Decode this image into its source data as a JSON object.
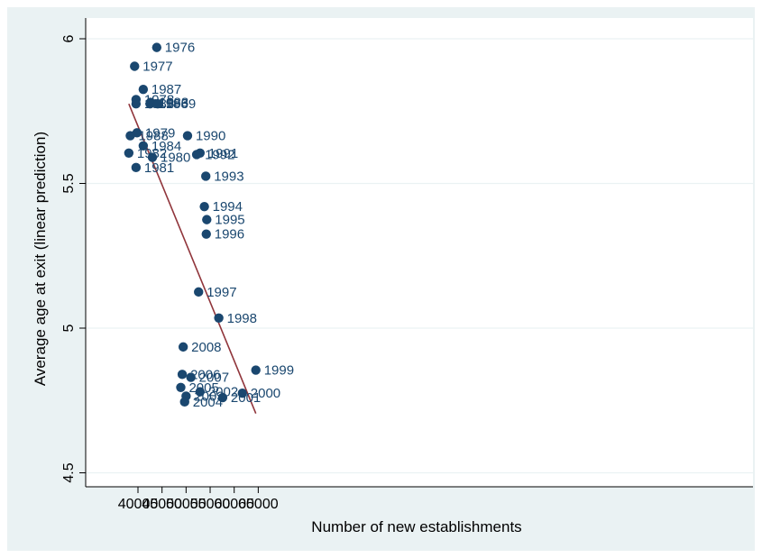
{
  "chart_data": {
    "type": "scatter",
    "xlabel": "Number of new establishments",
    "ylabel": "Average age at exit (linear prediction)",
    "xlim": [
      37900,
      65000
    ],
    "ylim": [
      4.45,
      6.07
    ],
    "x_ticks": [
      40000,
      45000,
      50000,
      55000,
      60000,
      65000
    ],
    "x_tick_labels": [
      "40000",
      "45000",
      "50000",
      "55000",
      "60000",
      "65000"
    ],
    "y_ticks": [
      4.5,
      5,
      5.5,
      6
    ],
    "y_tick_labels": [
      "4.5",
      "5",
      "5.5",
      "6"
    ],
    "grid": true,
    "colors": {
      "marker": "#1a476f",
      "label": "#1a476f",
      "fit_line": "#90353b",
      "plot_bg": "#ffffff",
      "outer_bg": "#eaf2f3",
      "grid": "#eaf2f3"
    },
    "points": [
      {
        "label": "1976",
        "x": 43900,
        "y": 5.97
      },
      {
        "label": "1977",
        "x": 39300,
        "y": 5.905
      },
      {
        "label": "1978",
        "x": 39600,
        "y": 5.79
      },
      {
        "label": "1979",
        "x": 39800,
        "y": 5.675
      },
      {
        "label": "1980",
        "x": 43000,
        "y": 5.59
      },
      {
        "label": "1981",
        "x": 39600,
        "y": 5.555
      },
      {
        "label": "1982",
        "x": 38100,
        "y": 5.605
      },
      {
        "label": "1983",
        "x": 42600,
        "y": 5.78
      },
      {
        "label": "1984",
        "x": 41100,
        "y": 5.63
      },
      {
        "label": "1985",
        "x": 39600,
        "y": 5.775
      },
      {
        "label": "1986",
        "x": 42500,
        "y": 5.775
      },
      {
        "label": "1987",
        "x": 41100,
        "y": 5.825
      },
      {
        "label": "1988",
        "x": 38400,
        "y": 5.665
      },
      {
        "label": "1989",
        "x": 44100,
        "y": 5.775
      },
      {
        "label": "1990",
        "x": 50300,
        "y": 5.665
      },
      {
        "label": "1991",
        "x": 52900,
        "y": 5.605
      },
      {
        "label": "1992",
        "x": 52200,
        "y": 5.6
      },
      {
        "label": "1993",
        "x": 54100,
        "y": 5.525
      },
      {
        "label": "1994",
        "x": 53800,
        "y": 5.42
      },
      {
        "label": "1995",
        "x": 54300,
        "y": 5.375
      },
      {
        "label": "1996",
        "x": 54200,
        "y": 5.325
      },
      {
        "label": "1997",
        "x": 52600,
        "y": 5.125
      },
      {
        "label": "1998",
        "x": 56800,
        "y": 5.035
      },
      {
        "label": "1999",
        "x": 64500,
        "y": 4.855
      },
      {
        "label": "2000",
        "x": 61700,
        "y": 4.775
      },
      {
        "label": "2001",
        "x": 57600,
        "y": 4.76
      },
      {
        "label": "2002",
        "x": 52900,
        "y": 4.78
      },
      {
        "label": "2003",
        "x": 50000,
        "y": 4.765
      },
      {
        "label": "2004",
        "x": 49700,
        "y": 4.745
      },
      {
        "label": "2005",
        "x": 48900,
        "y": 4.795
      },
      {
        "label": "2006",
        "x": 49200,
        "y": 4.84
      },
      {
        "label": "2007",
        "x": 51000,
        "y": 4.83
      },
      {
        "label": "2008",
        "x": 49400,
        "y": 4.935
      }
    ],
    "fit_line": {
      "x": [
        38100,
        64500
      ],
      "y": [
        5.775,
        4.705
      ]
    }
  }
}
